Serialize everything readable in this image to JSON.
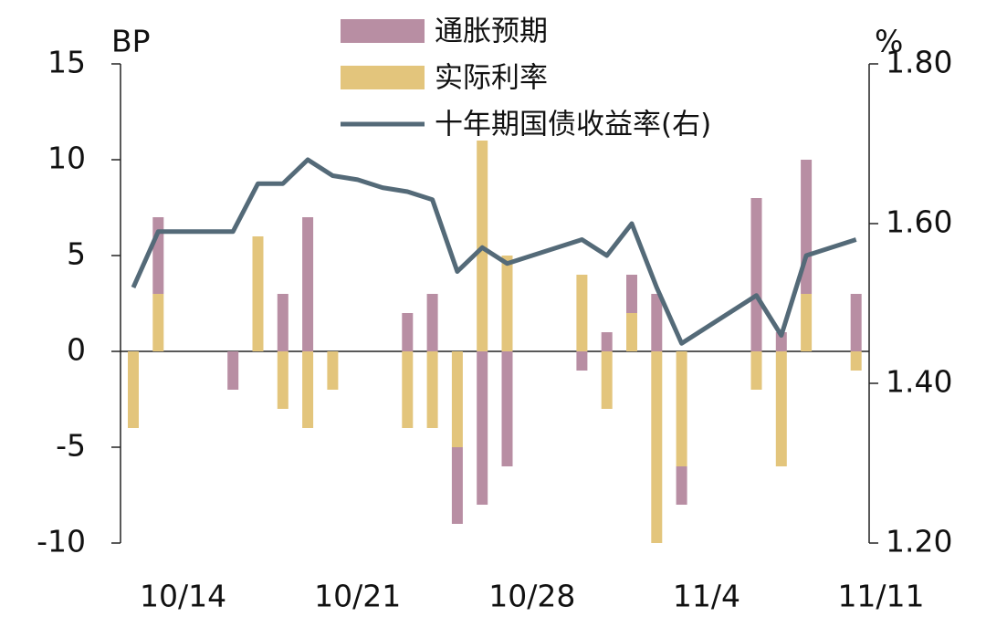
{
  "chart_data": {
    "type": "bar",
    "stacked": true,
    "categories": [
      null,
      null,
      "10/14",
      null,
      null,
      null,
      null,
      null,
      null,
      "10/21",
      null,
      null,
      null,
      null,
      null,
      null,
      "10/28",
      null,
      null,
      null,
      null,
      null,
      null,
      "11/4",
      null,
      null,
      null,
      null,
      null,
      null,
      "11/11"
    ],
    "series": [
      {
        "name": "实际利率",
        "color": "#e3c57c",
        "values": [
          -4,
          3,
          null,
          null,
          null,
          6,
          -3,
          -4,
          -2,
          null,
          null,
          -4,
          -4,
          -5,
          11,
          5,
          null,
          null,
          4,
          -3,
          2,
          -10,
          -6,
          null,
          null,
          -2,
          -6,
          3,
          null,
          -1,
          null
        ]
      },
      {
        "name": "通胀预期",
        "color": "#b88ea3",
        "values": [
          null,
          4,
          null,
          null,
          -2,
          null,
          3,
          7,
          null,
          null,
          null,
          2,
          3,
          -4,
          -8,
          -6,
          null,
          null,
          -1,
          1,
          2,
          3,
          -2,
          null,
          null,
          8,
          1,
          7,
          null,
          3,
          null
        ]
      },
      {
        "name": "十年期国债收益率(右)",
        "color": "#546a78",
        "type": "line",
        "axis": "y2",
        "values": [
          1.52,
          1.59,
          1.59,
          1.59,
          1.59,
          1.65,
          1.65,
          1.68,
          1.66,
          1.655,
          1.645,
          1.64,
          1.63,
          1.54,
          1.57,
          1.55,
          1.56,
          1.57,
          1.58,
          1.56,
          1.6,
          1.52,
          1.45,
          1.47,
          1.49,
          1.51,
          1.46,
          1.56,
          1.57,
          1.58,
          null
        ]
      }
    ],
    "y_label": "BP",
    "y2_label": "%",
    "ylim": [
      -10,
      15
    ],
    "yticks": [
      -10,
      -5,
      0,
      5,
      10,
      15
    ],
    "y2lim": [
      1.2,
      1.8
    ],
    "y2ticks": [
      {
        "value": 1.2,
        "label": "1.20"
      },
      {
        "value": 1.4,
        "label": "1.40"
      },
      {
        "value": 1.6,
        "label": "1.60"
      },
      {
        "value": 1.8,
        "label": "1.80"
      }
    ],
    "legend": "top"
  }
}
